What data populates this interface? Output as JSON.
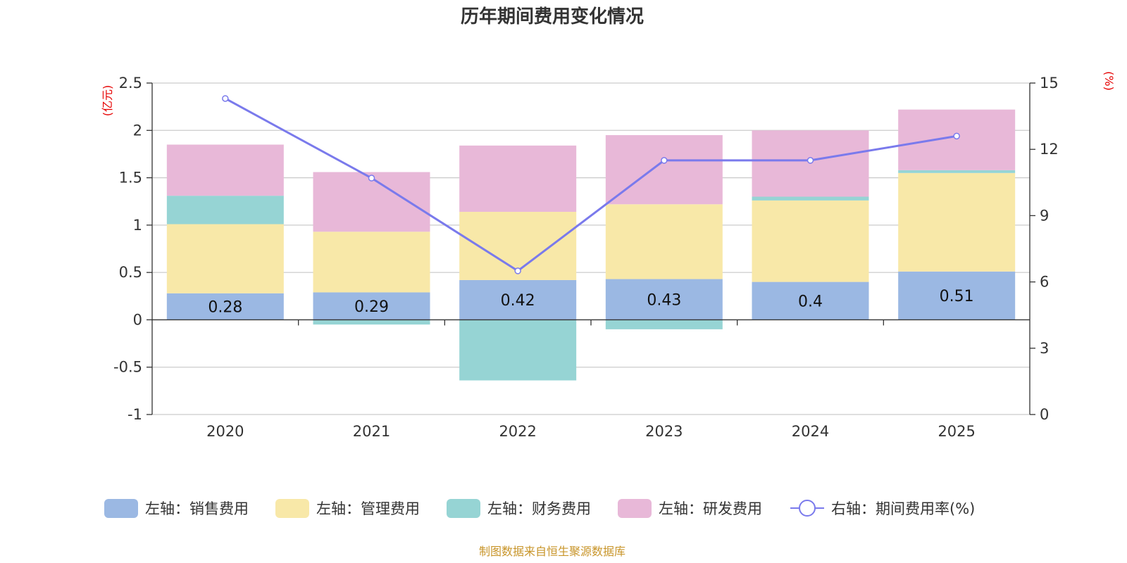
{
  "chart_data": {
    "type": "bar",
    "title": "历年期间费用变化情况",
    "categories": [
      "2020",
      "2021",
      "2022",
      "2023",
      "2024",
      "2025"
    ],
    "stacked": true,
    "series": [
      {
        "name": "左轴：销售费用",
        "axis": "left",
        "type": "bar",
        "color": "#9bb8e3",
        "values": [
          0.28,
          0.29,
          0.42,
          0.43,
          0.4,
          0.51
        ],
        "labels": [
          "0.28",
          "0.29",
          "0.42",
          "0.43",
          "0.4",
          "0.51"
        ]
      },
      {
        "name": "左轴：管理费用",
        "axis": "left",
        "type": "bar",
        "color": "#f8e8a8",
        "values": [
          0.73,
          0.64,
          0.72,
          0.79,
          0.86,
          1.04
        ]
      },
      {
        "name": "左轴：财务费用",
        "axis": "left",
        "type": "bar",
        "color": "#96d4d4",
        "values": [
          0.3,
          -0.05,
          -0.64,
          -0.1,
          0.04,
          0.03
        ]
      },
      {
        "name": "左轴：研发费用",
        "axis": "left",
        "type": "bar",
        "color": "#e8b8d8",
        "values": [
          0.54,
          0.63,
          0.7,
          0.73,
          0.7,
          0.64
        ]
      },
      {
        "name": "右轴：期间费用率(%)",
        "axis": "right",
        "type": "line",
        "color": "#7a7aec",
        "values": [
          14.3,
          10.7,
          6.5,
          11.5,
          11.5,
          12.6
        ]
      }
    ],
    "left_axis": {
      "unit": "(亿元)",
      "range": [
        -1,
        2.5
      ],
      "ticks": [
        -1,
        -0.5,
        0,
        0.5,
        1,
        1.5,
        2,
        2.5
      ],
      "tick_labels": [
        "-1",
        "-0.5",
        "0",
        "0.5",
        "1",
        "1.5",
        "2",
        "2.5"
      ]
    },
    "right_axis": {
      "unit": "(%)",
      "range": [
        0,
        15
      ],
      "ticks": [
        0,
        3,
        6,
        9,
        12,
        15
      ],
      "tick_labels": [
        "0",
        "3",
        "6",
        "9",
        "12",
        "15"
      ]
    },
    "legend_position": "bottom",
    "grid": true
  },
  "source": "制图数据来自恒生聚源数据库"
}
